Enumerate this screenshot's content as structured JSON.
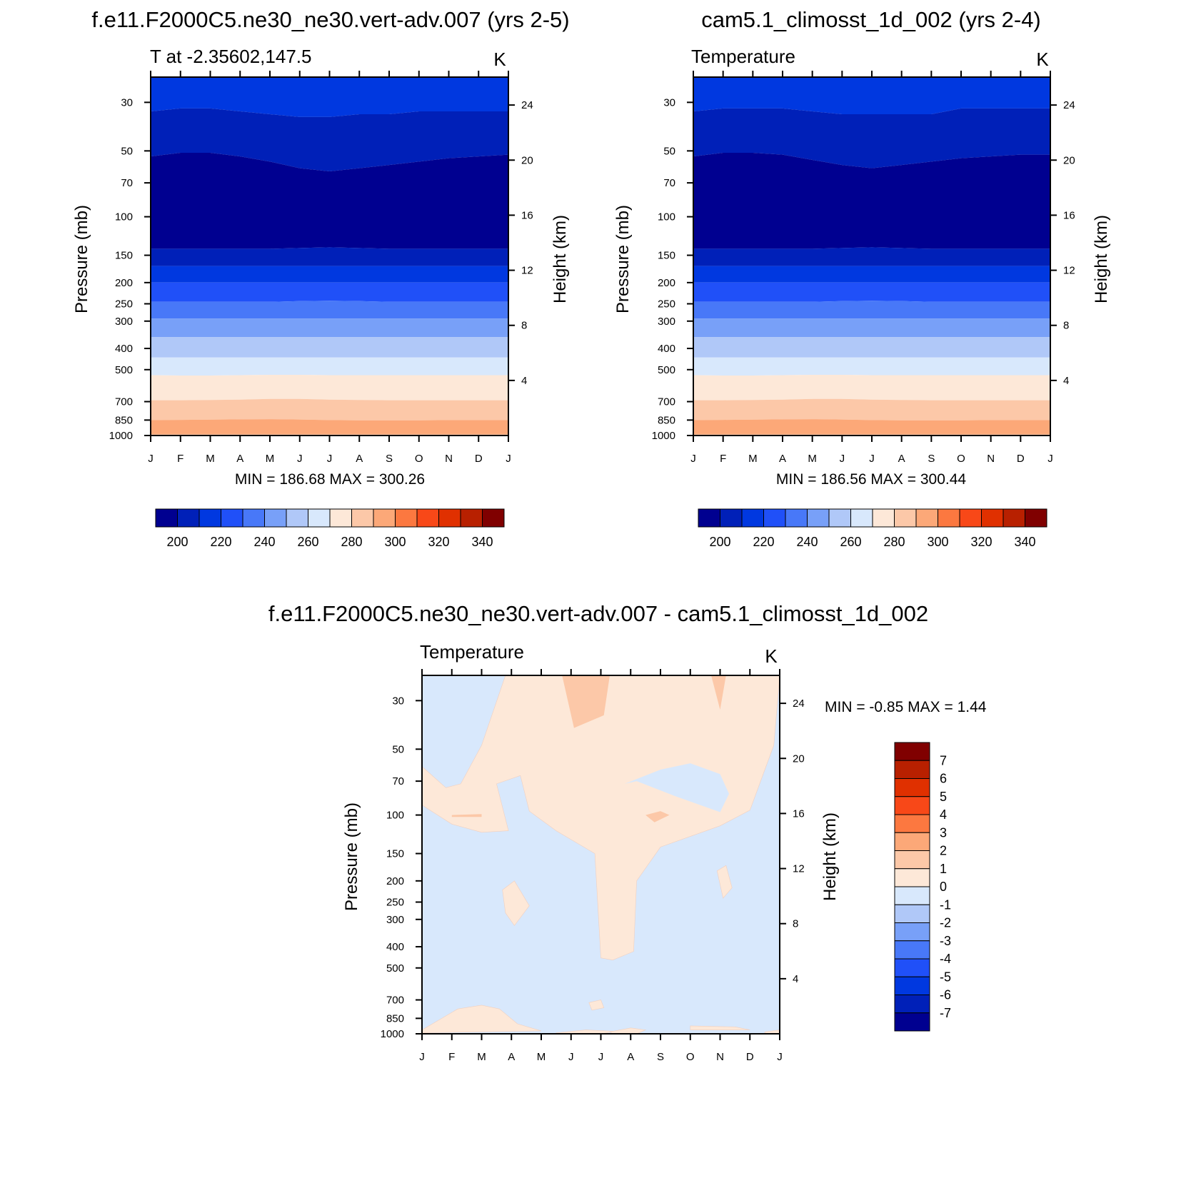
{
  "palette": {
    "abs": [
      "#000090",
      "#0020b8",
      "#0038e0",
      "#2050f8",
      "#4878f8",
      "#78a0f8",
      "#b0c8f8",
      "#d8e8fc",
      "#fde8d8",
      "#fcc8a8",
      "#fca878",
      "#fc7840",
      "#f84818",
      "#e03000",
      "#b82000",
      "#800000"
    ],
    "diff": [
      "#000090",
      "#0020b8",
      "#0038e0",
      "#2050f8",
      "#4878f8",
      "#78a0f8",
      "#b0c8f8",
      "#d8e8fc",
      "#fde8d8",
      "#fcc8a8",
      "#fca878",
      "#fc7840",
      "#f84818",
      "#e03000",
      "#b82000",
      "#800000"
    ]
  },
  "chart_data": [
    {
      "type": "heatmap",
      "title": "f.e11.F2000C5.ne30_ne30.vert-adv.007 (yrs 2-5)",
      "subtitle": "T at -2.35602,147.5",
      "units": "K",
      "ylabel": "Pressure (mb)",
      "ylabel_right": "Height (km)",
      "x_ticks": [
        "J",
        "F",
        "M",
        "A",
        "M",
        "J",
        "J",
        "A",
        "S",
        "O",
        "N",
        "D",
        "J"
      ],
      "y_ticks": [
        30,
        50,
        70,
        100,
        150,
        200,
        250,
        300,
        400,
        500,
        700,
        850,
        1000
      ],
      "y_ticks_right": [
        24,
        20,
        16,
        12,
        8,
        4
      ],
      "stats": "MIN = 186.68 MAX = 300.26",
      "colorbar_labels": [
        "200",
        "220",
        "240",
        "260",
        "280",
        "300",
        "320",
        "340"
      ],
      "colorbar_levels": [
        190,
        200,
        210,
        220,
        230,
        240,
        250,
        260,
        270,
        280,
        290,
        300,
        310,
        320,
        330,
        340,
        350
      ]
    },
    {
      "type": "heatmap",
      "title": "cam5.1_climosst_1d_002 (yrs 2-4)",
      "subtitle": "Temperature",
      "units": "K",
      "ylabel": "Pressure (mb)",
      "ylabel_right": "Height (km)",
      "x_ticks": [
        "J",
        "F",
        "M",
        "A",
        "M",
        "J",
        "J",
        "A",
        "S",
        "O",
        "N",
        "D",
        "J"
      ],
      "y_ticks": [
        30,
        50,
        70,
        100,
        150,
        200,
        250,
        300,
        400,
        500,
        700,
        850,
        1000
      ],
      "y_ticks_right": [
        24,
        20,
        16,
        12,
        8,
        4
      ],
      "stats": "MIN = 186.56 MAX = 300.44",
      "colorbar_labels": [
        "200",
        "220",
        "240",
        "260",
        "280",
        "300",
        "320",
        "340"
      ],
      "colorbar_levels": [
        190,
        200,
        210,
        220,
        230,
        240,
        250,
        260,
        270,
        280,
        290,
        300,
        310,
        320,
        330,
        340,
        350
      ]
    },
    {
      "type": "heatmap",
      "title": "f.e11.F2000C5.ne30_ne30.vert-adv.007 - cam5.1_climosst_1d_002",
      "subtitle": "Temperature",
      "units": "K",
      "ylabel": "Pressure (mb)",
      "ylabel_right": "Height (km)",
      "x_ticks": [
        "J",
        "F",
        "M",
        "A",
        "M",
        "J",
        "J",
        "A",
        "S",
        "O",
        "N",
        "D",
        "J"
      ],
      "y_ticks": [
        30,
        50,
        70,
        100,
        150,
        200,
        250,
        300,
        400,
        500,
        700,
        850,
        1000
      ],
      "y_ticks_right": [
        24,
        20,
        16,
        12,
        8,
        4
      ],
      "stats": "MIN =  -0.85 MAX =   1.44",
      "colorbar_labels": [
        "7",
        "6",
        "5",
        "4",
        "3",
        "2",
        "1",
        "0",
        "-1",
        "-2",
        "-3",
        "-4",
        "-5",
        "-6",
        "-7"
      ],
      "colorbar_levels": [
        -8,
        -7,
        -6,
        -5,
        -4,
        -3,
        -2,
        -1,
        0,
        1,
        2,
        3,
        4,
        5,
        6,
        7,
        8
      ]
    }
  ]
}
